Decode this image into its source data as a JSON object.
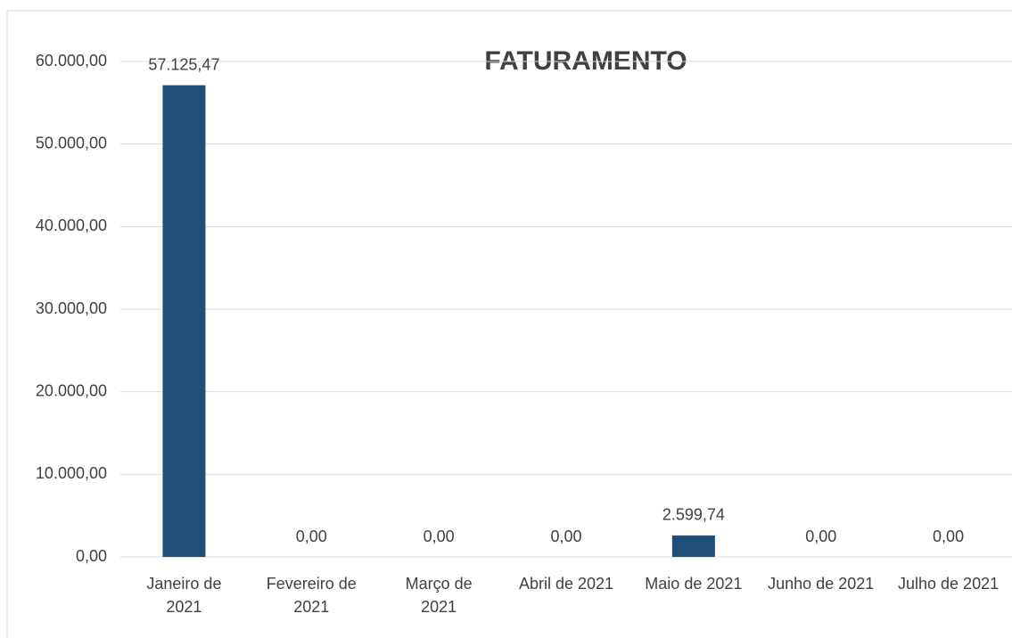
{
  "chart_data": {
    "type": "bar",
    "title": "FATURAMENTO",
    "categories": [
      "Janeiro de 2021",
      "Fevereiro de 2021",
      "Março de 2021",
      "Abril de 2021",
      "Maio de 2021",
      "Junho de 2021",
      "Julho de 2021"
    ],
    "values": [
      57125.47,
      0,
      0,
      0,
      2599.74,
      0,
      0
    ],
    "value_labels": [
      "57.125,47",
      "0,00",
      "0,00",
      "0,00",
      "2.599,74",
      "0,00",
      "0,00"
    ],
    "color": "#1f4e79",
    "ylim": [
      0,
      60000
    ],
    "yticks": [
      {
        "value": 0,
        "label": "0,00"
      },
      {
        "value": 10000,
        "label": "10.000,00"
      },
      {
        "value": 20000,
        "label": "20.000,00"
      },
      {
        "value": 30000,
        "label": "30.000,00"
      },
      {
        "value": 40000,
        "label": "40.000,00"
      },
      {
        "value": 50000,
        "label": "50.000,00"
      },
      {
        "value": 60000,
        "label": "60.000,00"
      }
    ],
    "grid": true
  }
}
